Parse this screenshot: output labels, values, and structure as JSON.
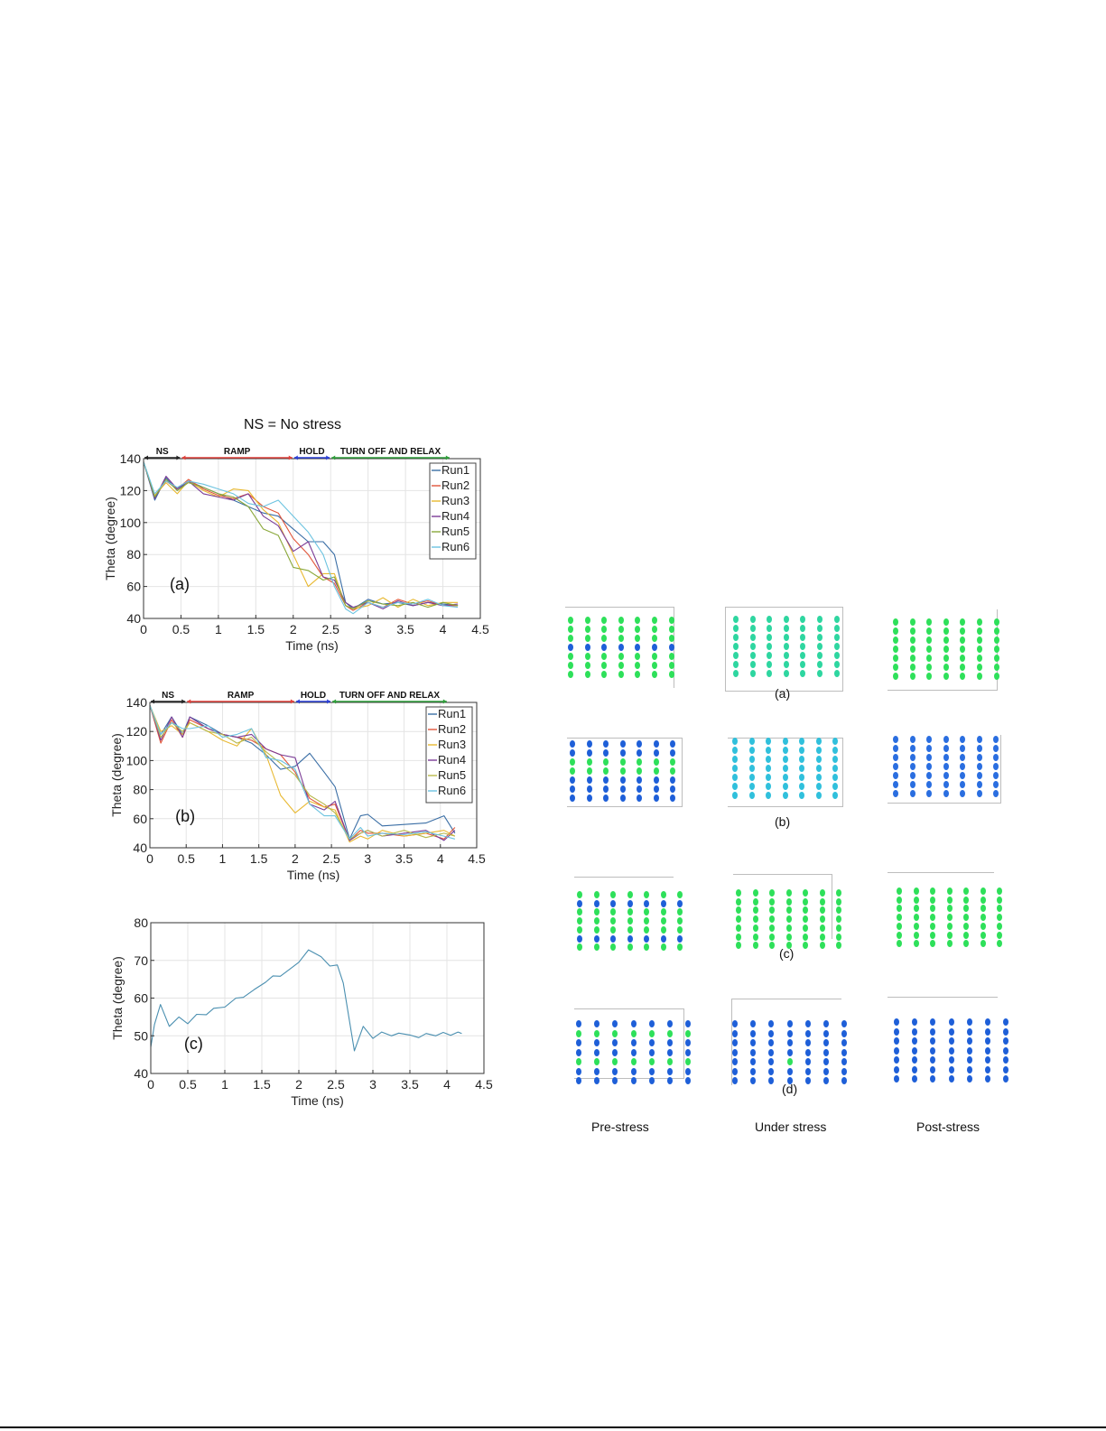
{
  "figure_title": "NS = No stress",
  "chart_data": [
    {
      "id": "a",
      "type": "line",
      "panel_label": "(a)",
      "title": "",
      "xlabel": "Time (ns)",
      "ylabel": "Theta (degree)",
      "xlim": [
        0,
        4.5
      ],
      "ylim": [
        40,
        140
      ],
      "xticks": [
        0,
        0.5,
        1,
        1.5,
        2,
        2.5,
        3,
        3.5,
        4,
        4.5
      ],
      "yticks": [
        40,
        60,
        80,
        100,
        120,
        140
      ],
      "grid": true,
      "legend_position": "upper right",
      "phases": [
        {
          "label": "NS",
          "start": 0,
          "end": 0.5,
          "color": "#222222"
        },
        {
          "label": "RAMP",
          "start": 0.5,
          "end": 2.0,
          "color": "#e0403a"
        },
        {
          "label": "HOLD",
          "start": 2.0,
          "end": 2.5,
          "color": "#2a3fd6"
        },
        {
          "label": "TURN OFF AND RELAX",
          "start": 2.5,
          "end": 4.1,
          "color": "#2e9e3a"
        }
      ],
      "x": [
        0,
        0.15,
        0.3,
        0.45,
        0.6,
        0.8,
        1.0,
        1.2,
        1.4,
        1.6,
        1.8,
        2.0,
        2.2,
        2.4,
        2.55,
        2.7,
        2.8,
        3.0,
        3.2,
        3.4,
        3.6,
        3.8,
        4.0,
        4.2
      ],
      "series": [
        {
          "name": "Run1",
          "color": "#3a6ea5",
          "values": [
            138,
            114,
            128,
            120,
            126,
            122,
            118,
            114,
            110,
            106,
            104,
            96,
            88,
            88,
            80,
            50,
            46,
            52,
            49,
            50,
            48,
            50,
            49,
            48
          ]
        },
        {
          "name": "Run2",
          "color": "#e0553a",
          "values": [
            138,
            116,
            126,
            121,
            127,
            121,
            117,
            115,
            118,
            110,
            106,
            90,
            80,
            66,
            62,
            48,
            45,
            50,
            47,
            52,
            49,
            51,
            48,
            48
          ]
        },
        {
          "name": "Run3",
          "color": "#e8b830",
          "values": [
            138,
            117,
            125,
            118,
            126,
            120,
            116,
            121,
            120,
            108,
            100,
            80,
            60,
            68,
            68,
            48,
            46,
            48,
            53,
            47,
            52,
            48,
            50,
            50
          ]
        },
        {
          "name": "Run4",
          "color": "#7b3c96",
          "values": [
            138,
            115,
            129,
            121,
            126,
            118,
            116,
            114,
            118,
            104,
            98,
            82,
            88,
            66,
            64,
            50,
            47,
            50,
            46,
            51,
            48,
            50,
            48,
            49
          ]
        },
        {
          "name": "Run5",
          "color": "#8aa83a",
          "values": [
            138,
            116,
            127,
            120,
            125,
            122,
            118,
            116,
            110,
            96,
            92,
            72,
            70,
            64,
            66,
            48,
            46,
            51,
            49,
            48,
            50,
            47,
            50,
            48
          ]
        },
        {
          "name": "Run6",
          "color": "#6cc3e0",
          "values": [
            138,
            118,
            126,
            122,
            126,
            124,
            121,
            118,
            112,
            110,
            114,
            104,
            94,
            80,
            60,
            46,
            43,
            50,
            47,
            50,
            49,
            52,
            48,
            47
          ]
        }
      ]
    },
    {
      "id": "b",
      "type": "line",
      "panel_label": "(b)",
      "title": "",
      "xlabel": "Time (ns)",
      "ylabel": "Theta (degree)",
      "xlim": [
        0,
        4.5
      ],
      "ylim": [
        40,
        140
      ],
      "xticks": [
        0,
        0.5,
        1,
        1.5,
        2,
        2.5,
        3,
        3.5,
        4,
        4.5
      ],
      "yticks": [
        40,
        60,
        80,
        100,
        120,
        140
      ],
      "grid": true,
      "legend_position": "upper right",
      "phases": [
        {
          "label": "NS",
          "start": 0,
          "end": 0.5,
          "color": "#222222"
        },
        {
          "label": "RAMP",
          "start": 0.5,
          "end": 2.0,
          "color": "#e0403a"
        },
        {
          "label": "HOLD",
          "start": 2.0,
          "end": 2.5,
          "color": "#2a3fd6"
        },
        {
          "label": "TURN OFF AND RELAX",
          "start": 2.5,
          "end": 4.1,
          "color": "#2e9e3a"
        }
      ],
      "x": [
        0,
        0.15,
        0.3,
        0.45,
        0.55,
        0.8,
        1.0,
        1.2,
        1.4,
        1.6,
        1.8,
        2.0,
        2.2,
        2.4,
        2.55,
        2.75,
        2.9,
        3.0,
        3.2,
        3.5,
        3.8,
        4.05,
        4.2
      ],
      "series": [
        {
          "name": "Run1",
          "color": "#3a6ea5",
          "values": [
            138,
            118,
            130,
            118,
            130,
            124,
            118,
            116,
            112,
            104,
            94,
            96,
            105,
            92,
            82,
            46,
            62,
            63,
            55,
            56,
            57,
            62,
            50
          ]
        },
        {
          "name": "Run2",
          "color": "#e0553a",
          "values": [
            138,
            112,
            128,
            116,
            128,
            122,
            118,
            116,
            114,
            108,
            104,
            92,
            74,
            68,
            70,
            45,
            52,
            50,
            50,
            48,
            50,
            46,
            54
          ]
        },
        {
          "name": "Run3",
          "color": "#e8b830",
          "values": [
            138,
            120,
            124,
            118,
            126,
            120,
            114,
            110,
            122,
            104,
            76,
            64,
            72,
            68,
            66,
            44,
            48,
            46,
            52,
            48,
            50,
            52,
            48
          ]
        },
        {
          "name": "Run4",
          "color": "#7b3c96",
          "values": [
            138,
            114,
            130,
            116,
            130,
            122,
            118,
            116,
            118,
            108,
            104,
            102,
            70,
            66,
            72,
            45,
            50,
            52,
            48,
            50,
            52,
            45,
            52
          ]
        },
        {
          "name": "Run5",
          "color": "#b8b84a",
          "values": [
            138,
            116,
            126,
            120,
            126,
            120,
            118,
            112,
            116,
            106,
            98,
            90,
            76,
            70,
            64,
            46,
            50,
            52,
            48,
            52,
            47,
            50,
            48
          ]
        },
        {
          "name": "Run6",
          "color": "#6cc3e0",
          "values": [
            138,
            118,
            126,
            122,
            122,
            124,
            116,
            118,
            122,
            102,
            100,
            94,
            70,
            62,
            62,
            46,
            54,
            48,
            50,
            49,
            51,
            48,
            46
          ]
        }
      ]
    },
    {
      "id": "c",
      "type": "line",
      "panel_label": "(c)",
      "title": "",
      "xlabel": "Time (ns)",
      "ylabel": "Theta (degree)",
      "xlim": [
        0,
        4.5
      ],
      "ylim": [
        40,
        80
      ],
      "xticks": [
        0,
        0.5,
        1,
        1.5,
        2,
        2.5,
        3,
        3.5,
        4,
        4.5
      ],
      "yticks": [
        40,
        50,
        60,
        70,
        80
      ],
      "grid": true,
      "x": [
        0,
        0.05,
        0.13,
        0.25,
        0.38,
        0.5,
        0.62,
        0.75,
        0.85,
        1.0,
        1.15,
        1.25,
        1.4,
        1.55,
        1.65,
        1.75,
        1.9,
        2.0,
        2.13,
        2.3,
        2.42,
        2.52,
        2.6,
        2.75,
        2.87,
        3.0,
        3.12,
        3.25,
        3.35,
        3.5,
        3.62,
        3.72,
        3.85,
        3.95,
        4.05,
        4.15,
        4.2
      ],
      "series": [
        {
          "name": "Theta",
          "color": "#4a8fb0",
          "values": [
            47,
            53,
            58.3,
            52.5,
            55,
            53.2,
            55.7,
            55.6,
            57.3,
            57.6,
            60,
            60.2,
            62.3,
            64.2,
            65.9,
            65.8,
            68,
            69.5,
            72.8,
            71,
            68.5,
            68.8,
            64,
            46,
            52.5,
            49.3,
            51,
            50,
            50.7,
            50.2,
            49.5,
            50.6,
            50,
            50.9,
            50.1,
            51,
            50.6
          ]
        }
      ]
    }
  ],
  "lattice_panels": {
    "rows": [
      {
        "label": "(a)",
        "panels": [
          {
            "rows": [
              "green",
              "green",
              "green",
              "blue",
              "green",
              "green",
              "green"
            ]
          },
          {
            "rows": [
              "teal",
              "teal",
              "teal",
              "teal",
              "teal",
              "teal",
              "teal"
            ]
          },
          {
            "rows": [
              "green",
              "green",
              "green",
              "green",
              "green",
              "green",
              "green"
            ]
          }
        ]
      },
      {
        "label": "(b)",
        "panels": [
          {
            "rows": [
              "blue",
              "blue",
              "green",
              "green",
              "blue",
              "blue",
              "blue"
            ]
          },
          {
            "rows": [
              "cyan",
              "cyan",
              "cyan",
              "cyan",
              "cyan",
              "cyan",
              "cyan"
            ]
          },
          {
            "rows": [
              "mixblue",
              "mixblue",
              "mixblue",
              "mixblue",
              "mixblue",
              "mixblue",
              "mixblue"
            ]
          }
        ]
      },
      {
        "label": "(c)",
        "panels": [
          {
            "rows": [
              "green",
              "blue",
              "green",
              "green",
              "green",
              "blue",
              "green"
            ]
          },
          {
            "rows": [
              "green",
              "green",
              "green",
              "green",
              "green",
              "green",
              "green"
            ]
          },
          {
            "rows": [
              "green",
              "green",
              "green",
              "green",
              "green",
              "green",
              "green"
            ]
          }
        ]
      },
      {
        "label": "(d)",
        "panels": [
          {
            "rows": [
              "blue",
              "green",
              "blue",
              "blue",
              "green",
              "blue",
              "blue"
            ]
          },
          {
            "rows": [
              "blue",
              "blue",
              "blue",
              "blue",
              "blue",
              "blue",
              "blue"
            ],
            "highlight": {
              "row": 4,
              "col": 3,
              "color": "green"
            }
          },
          {
            "rows": [
              "blue",
              "blue",
              "blue",
              "blue",
              "blue",
              "blue",
              "blue"
            ]
          }
        ]
      }
    ],
    "column_labels": [
      "Pre-stress",
      "Under stress",
      "Post-stress"
    ],
    "colors": {
      "green": "#2ee05a",
      "blue": "#1e5fd8",
      "teal": "#2ed6a0",
      "cyan": "#30c0dc",
      "mixblue": "#2a6ee0"
    }
  }
}
